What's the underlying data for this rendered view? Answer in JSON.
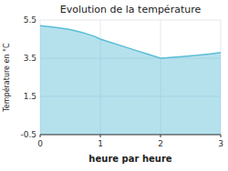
{
  "chart_data": {
    "type": "area",
    "title": "Evolution de la température",
    "x_label": "heure par heure",
    "y_label": "Température en °C",
    "x": [
      0,
      0.15,
      0.3,
      0.5,
      0.7,
      0.9,
      1.0,
      1.2,
      1.4,
      1.6,
      1.8,
      2.0,
      2.1,
      2.2,
      2.4,
      2.6,
      2.8,
      3.0
    ],
    "values": [
      5.2,
      5.15,
      5.1,
      5.0,
      4.85,
      4.65,
      4.5,
      4.3,
      4.1,
      3.9,
      3.7,
      3.5,
      3.52,
      3.55,
      3.6,
      3.65,
      3.72,
      3.8
    ],
    "color": "#5bbdd6",
    "xlim": [
      0,
      3
    ],
    "ylim": [
      -0.5,
      5.5
    ],
    "xticks": [
      0,
      1,
      2,
      3
    ],
    "yticks": [
      -0.5,
      1.5,
      3.5,
      5.5
    ],
    "grid": true
  }
}
